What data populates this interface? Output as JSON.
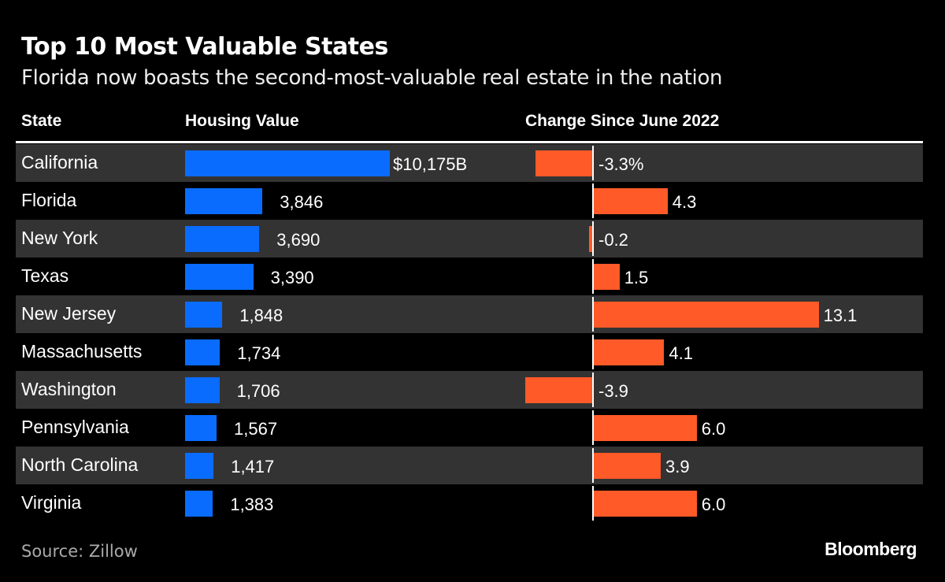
{
  "title": "Top 10 Most Valuable States",
  "subtitle": "Florida now boasts the second-most-valuable real estate in the nation",
  "source": "Source: Zillow",
  "brand": "Bloomberg",
  "colors": {
    "housing": "#0a6cff",
    "change": "#ff5a28",
    "stripe": "#333333"
  },
  "chart_data": {
    "type": "table",
    "columns": [
      "State",
      "Housing Value",
      "Change Since June 2022"
    ],
    "categories": [
      "California",
      "Florida",
      "New York",
      "Texas",
      "New Jersey",
      "Massachusetts",
      "Washington",
      "Pennsylvania",
      "North Carolina",
      "Virginia"
    ],
    "series": [
      {
        "name": "Housing Value",
        "unit": "$B",
        "values": [
          10175,
          3846,
          3690,
          3390,
          1848,
          1734,
          1706,
          1567,
          1417,
          1383
        ],
        "labels": [
          "$10,175B",
          "3,846",
          "3,690",
          "3,390",
          "1,848",
          "1,734",
          "1,706",
          "1,567",
          "1,417",
          "1,383"
        ]
      },
      {
        "name": "Change Since June 2022",
        "unit": "%",
        "values": [
          -3.3,
          4.3,
          -0.2,
          1.5,
          13.1,
          4.1,
          -3.9,
          6.0,
          3.9,
          6.0
        ],
        "labels": [
          "-3.3%",
          "4.3",
          "-0.2",
          "1.5",
          "13.1",
          "4.1",
          "-3.9",
          "6.0",
          "3.9",
          "6.0"
        ]
      }
    ]
  }
}
